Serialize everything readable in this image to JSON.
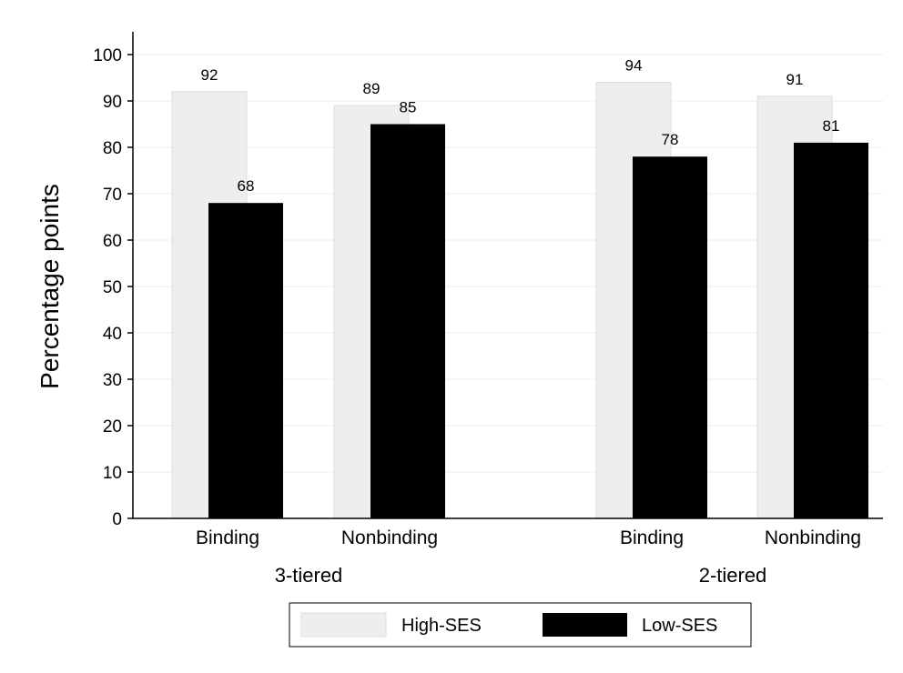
{
  "chart_data": {
    "type": "bar",
    "groups": [
      {
        "label": "3-tiered",
        "categories": [
          "Binding",
          "Nonbinding"
        ]
      },
      {
        "label": "2-tiered",
        "categories": [
          "Binding",
          "Nonbinding"
        ]
      }
    ],
    "series": [
      {
        "name": "High-SES",
        "color": "#eeeeee",
        "values": [
          92,
          89,
          94,
          91
        ],
        "labels": [
          "92",
          "89",
          "94",
          "91"
        ]
      },
      {
        "name": "Low-SES",
        "color": "#000000",
        "values": [
          68,
          85,
          78,
          81
        ],
        "labels": [
          "68",
          "85",
          "78",
          "81"
        ]
      }
    ],
    "ylabel": "Percentage points",
    "xlabel": "",
    "ylim": [
      0,
      100
    ],
    "yticks": [
      "0",
      "10",
      "20",
      "30",
      "40",
      "50",
      "60",
      "70",
      "80",
      "90",
      "100"
    ],
    "grid": true,
    "legend_position": "bottom"
  }
}
